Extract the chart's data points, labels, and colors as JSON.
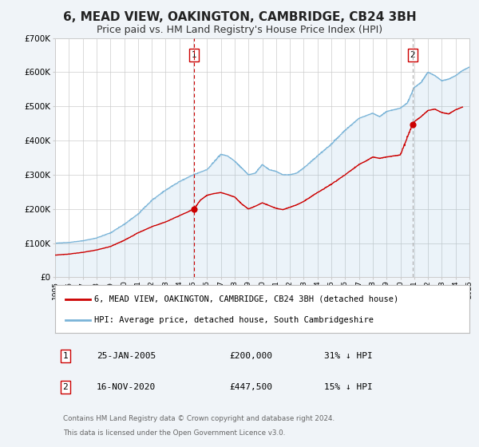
{
  "title": "6, MEAD VIEW, OAKINGTON, CAMBRIDGE, CB24 3BH",
  "subtitle": "Price paid vs. HM Land Registry's House Price Index (HPI)",
  "title_fontsize": 11,
  "subtitle_fontsize": 9,
  "x_start_year": 1995,
  "x_end_year": 2025,
  "y_min": 0,
  "y_max": 700000,
  "y_ticks": [
    0,
    100000,
    200000,
    300000,
    400000,
    500000,
    600000,
    700000
  ],
  "y_tick_labels": [
    "£0",
    "£100K",
    "£200K",
    "£300K",
    "£400K",
    "£500K",
    "£600K",
    "£700K"
  ],
  "hpi_color": "#7ab4d8",
  "price_color": "#cc0000",
  "sale1_price": 200000,
  "sale2_price": 447500,
  "sale1_x": 2005.07,
  "sale2_x": 2020.88,
  "sale1_date": "25-JAN-2005",
  "sale2_date": "16-NOV-2020",
  "sale1_pct": "31% ↓ HPI",
  "sale2_pct": "15% ↓ HPI",
  "legend_line1": "6, MEAD VIEW, OAKINGTON, CAMBRIDGE, CB24 3BH (detached house)",
  "legend_line2": "HPI: Average price, detached house, South Cambridgeshire",
  "footer1": "Contains HM Land Registry data © Crown copyright and database right 2024.",
  "footer2": "This data is licensed under the Open Government Licence v3.0.",
  "bg_color": "#f0f4f8",
  "plot_bg": "#ffffff",
  "grid_color": "#cccccc"
}
